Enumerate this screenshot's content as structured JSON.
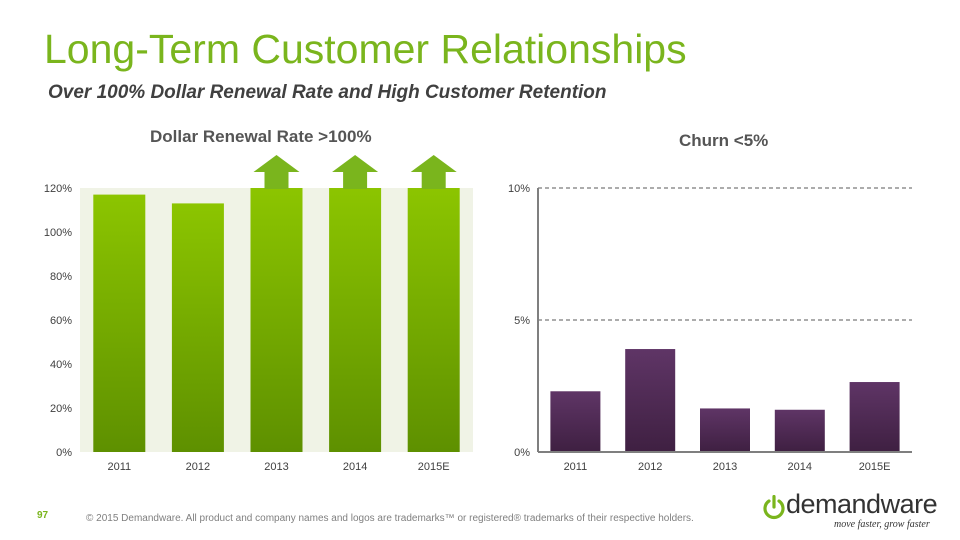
{
  "header": {
    "title": "Long-Term Customer Relationships",
    "subtitle": "Over 100% Dollar Renewal Rate and High Customer Retention"
  },
  "colors": {
    "accent": "#7ab51d",
    "bar_green_top": "#8cc500",
    "bar_green_bottom": "#5e9000",
    "bar_purple_top": "#5f3566",
    "bar_purple_bottom": "#3f2042",
    "panel_bg": "#f0f3e6"
  },
  "chart_data": [
    {
      "type": "bar",
      "title": "Dollar Renewal Rate >100%",
      "categories": [
        "2011",
        "2012",
        "2013",
        "2014",
        "2015E"
      ],
      "values": [
        117,
        113,
        120,
        120,
        120
      ],
      "exceeds_axis": [
        false,
        false,
        true,
        true,
        true
      ],
      "ylim": [
        0,
        120
      ],
      "yticks": [
        "0%",
        "20%",
        "40%",
        "60%",
        "80%",
        "100%",
        "120%"
      ],
      "xlabel": "",
      "ylabel": "",
      "grid": false
    },
    {
      "type": "bar",
      "title": "Churn <5%",
      "categories": [
        "2011",
        "2012",
        "2013",
        "2014",
        "2015E"
      ],
      "values": [
        2.3,
        3.9,
        1.65,
        1.6,
        2.65
      ],
      "ylim": [
        0,
        10
      ],
      "yticks": [
        "0%",
        "5%",
        "10%"
      ],
      "xlabel": "",
      "ylabel": "",
      "grid": true
    }
  ],
  "footer": {
    "page_number": "97",
    "copyright": "© 2015 Demandware. All product and company names and logos are trademarks™ or registered® trademarks of their respective holders."
  },
  "logo": {
    "wordmark": "demandware",
    "tagline": "move faster, grow faster"
  }
}
